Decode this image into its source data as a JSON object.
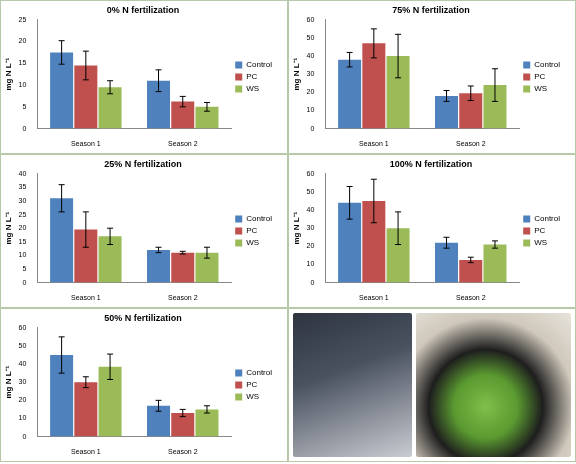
{
  "chart_data": [
    {
      "type": "bar",
      "title": "0% N fertilization",
      "y_label": "mg N L⁻¹",
      "categories": [
        "Season 1",
        "Season 2"
      ],
      "series": [
        {
          "name": "Control",
          "color": "#4f81bd",
          "values": [
            17.5,
            11
          ],
          "errors": [
            2.7,
            2.5
          ]
        },
        {
          "name": "PC",
          "color": "#c0504d",
          "values": [
            14.5,
            6.2
          ],
          "errors": [
            3.3,
            1.2
          ]
        },
        {
          "name": "WS",
          "color": "#9bbb59",
          "values": [
            9.5,
            5
          ],
          "errors": [
            1.5,
            1
          ]
        }
      ],
      "ylim": [
        0,
        25
      ],
      "yticks": [
        0,
        5,
        10,
        15,
        20,
        25
      ],
      "grid": false,
      "legend": "right"
    },
    {
      "type": "bar",
      "title": "75% N fertilization",
      "y_label": "mg N L⁻¹",
      "categories": [
        "Season 1",
        "Season 2"
      ],
      "series": [
        {
          "name": "Control",
          "color": "#4f81bd",
          "values": [
            38,
            18
          ],
          "errors": [
            4,
            3
          ]
        },
        {
          "name": "PC",
          "color": "#c0504d",
          "values": [
            47,
            19.5
          ],
          "errors": [
            8,
            4
          ]
        },
        {
          "name": "WS",
          "color": "#9bbb59",
          "values": [
            40,
            24
          ],
          "errors": [
            12,
            9
          ]
        }
      ],
      "ylim": [
        0,
        60
      ],
      "yticks": [
        0,
        10,
        20,
        30,
        40,
        50,
        60
      ],
      "grid": false,
      "legend": "right"
    },
    {
      "type": "bar",
      "title": "25% N fertilization",
      "y_label": "mg N L⁻¹",
      "categories": [
        "Season 1",
        "Season 2"
      ],
      "series": [
        {
          "name": "Control",
          "color": "#4f81bd",
          "values": [
            31,
            12
          ],
          "errors": [
            5,
            1
          ]
        },
        {
          "name": "PC",
          "color": "#c0504d",
          "values": [
            19.5,
            11
          ],
          "errors": [
            6.5,
            0.5
          ]
        },
        {
          "name": "WS",
          "color": "#9bbb59",
          "values": [
            17,
            11
          ],
          "errors": [
            3,
            2
          ]
        }
      ],
      "ylim": [
        0,
        40
      ],
      "yticks": [
        0,
        5,
        10,
        15,
        20,
        25,
        30,
        35,
        40
      ],
      "grid": false,
      "legend": "right"
    },
    {
      "type": "bar",
      "title": "100% N fertilization",
      "y_label": "mg N L⁻¹",
      "categories": [
        "Season 1",
        "Season 2"
      ],
      "series": [
        {
          "name": "Control",
          "color": "#4f81bd",
          "values": [
            44,
            22
          ],
          "errors": [
            9,
            3
          ]
        },
        {
          "name": "PC",
          "color": "#c0504d",
          "values": [
            45,
            12.5
          ],
          "errors": [
            12,
            1.5
          ]
        },
        {
          "name": "WS",
          "color": "#9bbb59",
          "values": [
            30,
            21
          ],
          "errors": [
            9,
            2
          ]
        }
      ],
      "ylim": [
        0,
        60
      ],
      "yticks": [
        0,
        10,
        20,
        30,
        40,
        50,
        60
      ],
      "grid": false,
      "legend": "right"
    },
    {
      "type": "bar",
      "title": "50% N fertilization",
      "y_label": "mg N L⁻¹",
      "categories": [
        "Season 1",
        "Season 2"
      ],
      "series": [
        {
          "name": "Control",
          "color": "#4f81bd",
          "values": [
            45,
            17
          ],
          "errors": [
            10,
            3
          ]
        },
        {
          "name": "PC",
          "color": "#c0504d",
          "values": [
            30,
            13
          ],
          "errors": [
            3,
            2
          ]
        },
        {
          "name": "WS",
          "color": "#9bbb59",
          "values": [
            38.5,
            15
          ],
          "errors": [
            7,
            2
          ]
        }
      ],
      "ylim": [
        0,
        60
      ],
      "yticks": [
        0,
        10,
        20,
        30,
        40,
        50,
        60
      ],
      "grid": false,
      "legend": "right"
    }
  ]
}
